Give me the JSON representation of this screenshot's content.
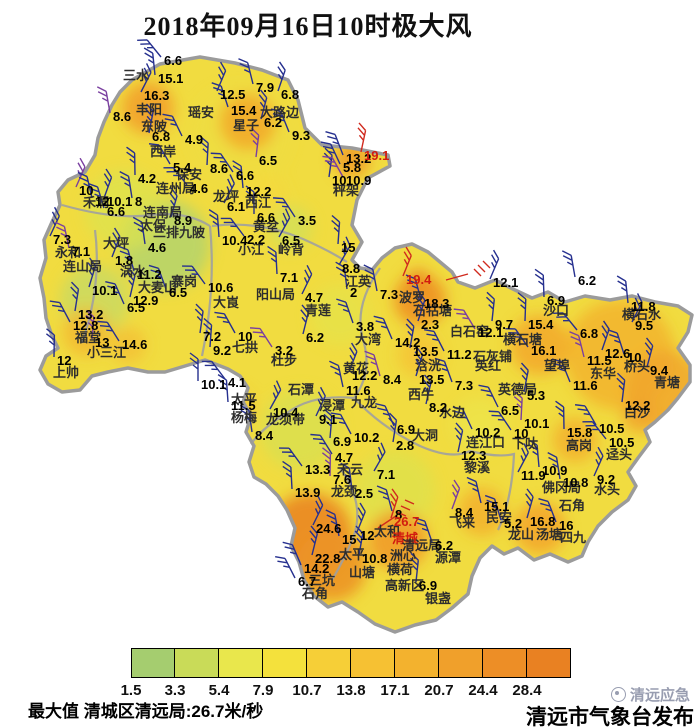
{
  "title": "2018年09月16日10时极大风",
  "legend": {
    "ticks": [
      "1.5",
      "3.3",
      "5.4",
      "7.9",
      "10.7",
      "13.8",
      "17.1",
      "20.7",
      "24.4",
      "28.4"
    ],
    "colors": [
      "#a5cd6f",
      "#c9db58",
      "#e9e74c",
      "#f4e13c",
      "#f6cf37",
      "#f6c133",
      "#f3b22e",
      "#f0a02b",
      "#ed8e26",
      "#e98122"
    ]
  },
  "footer": {
    "max_value_text": "最大值 清城区清远局:26.7米/秒",
    "issuer": "清远市气象台发布",
    "watermark": "清远应急"
  },
  "map": {
    "stations": [
      [
        "三水",
        125,
        76,
        "n"
      ],
      [
        "丰阳",
        138,
        110,
        "n"
      ],
      [
        "东陂",
        143,
        127,
        "n"
      ],
      [
        "瑶安",
        190,
        113,
        "n"
      ],
      [
        "大路边",
        262,
        113,
        "n"
      ],
      [
        "星子",
        235,
        126,
        "n"
      ],
      [
        "西岸",
        152,
        152,
        "n"
      ],
      [
        "保安",
        178,
        175,
        "n"
      ],
      [
        "连州局",
        158,
        189,
        "n"
      ],
      [
        "龙坪",
        215,
        197,
        "n"
      ],
      [
        "西江",
        247,
        203,
        "n"
      ],
      [
        "禾洞",
        85,
        203,
        "n"
      ],
      [
        "连南局",
        145,
        213,
        "n"
      ],
      [
        "太保",
        142,
        226,
        "n"
      ],
      [
        "三排九陂",
        155,
        233,
        "n"
      ],
      [
        "大坪",
        105,
        244,
        "n"
      ],
      [
        "永和",
        57,
        253,
        "n"
      ],
      [
        "黄坌",
        255,
        227,
        "n"
      ],
      [
        "小江",
        240,
        250,
        "n"
      ],
      [
        "岭背",
        280,
        250,
        "n"
      ],
      [
        "秤架",
        335,
        191,
        "n"
      ],
      [
        "连山局",
        65,
        267,
        "n"
      ],
      [
        "涡水",
        122,
        272,
        "n"
      ],
      [
        "大麦山",
        140,
        288,
        "n"
      ],
      [
        "寨岗",
        173,
        282,
        "n"
      ],
      [
        "阳山局",
        258,
        295,
        "n"
      ],
      [
        "大崀",
        215,
        303,
        "n"
      ],
      [
        "福堂",
        77,
        338,
        "n"
      ],
      [
        "小三江",
        89,
        353,
        "n"
      ],
      [
        "上帅",
        55,
        373,
        "n"
      ],
      [
        "七拱",
        234,
        348,
        "n"
      ],
      [
        "杜步",
        273,
        361,
        "n"
      ],
      [
        "太平",
        233,
        400,
        "n"
      ],
      [
        "杨梅",
        233,
        418,
        "n"
      ],
      [
        "龙须带",
        268,
        420,
        "n"
      ],
      [
        "江英",
        347,
        282,
        "n"
      ],
      [
        "青莲",
        307,
        311,
        "n"
      ],
      [
        "波罗",
        401,
        298,
        "n"
      ],
      [
        "石牯塘",
        415,
        311,
        "n"
      ],
      [
        "大湾",
        357,
        340,
        "n"
      ],
      [
        "石潭",
        290,
        390,
        "n"
      ],
      [
        "浸潭",
        321,
        406,
        "n"
      ],
      [
        "九龙",
        353,
        403,
        "n"
      ],
      [
        "黄花",
        345,
        369,
        "n"
      ],
      [
        "浛洸",
        417,
        366,
        "n"
      ],
      [
        "西牛",
        410,
        395,
        "n"
      ],
      [
        "水边",
        441,
        413,
        "n"
      ],
      [
        "大洞",
        414,
        436,
        "n"
      ],
      [
        "英红",
        477,
        366,
        "n"
      ],
      [
        "英德局",
        500,
        390,
        "n"
      ],
      [
        "石灰铺",
        475,
        357,
        "n"
      ],
      [
        "白石窑",
        452,
        332,
        "n"
      ],
      [
        "横石塘",
        505,
        340,
        "n"
      ],
      [
        "望埠",
        546,
        366,
        "n"
      ],
      [
        "沙口",
        545,
        311,
        "n"
      ],
      [
        "横石水",
        624,
        315,
        "n"
      ],
      [
        "东华",
        592,
        374,
        "n"
      ],
      [
        "桥头",
        626,
        367,
        "n"
      ],
      [
        "青塘",
        656,
        383,
        "n"
      ],
      [
        "白沙",
        626,
        413,
        "n"
      ],
      [
        "连江口",
        468,
        443,
        "n"
      ],
      [
        "黎溪",
        466,
        468,
        "n"
      ],
      [
        "下呔",
        514,
        444,
        "n"
      ],
      [
        "高岗",
        568,
        446,
        "n"
      ],
      [
        "迳头",
        608,
        455,
        "n"
      ],
      [
        "佛冈局",
        544,
        488,
        "n"
      ],
      [
        "水头",
        596,
        490,
        "n"
      ],
      [
        "石角",
        561,
        506,
        "n"
      ],
      [
        "民安",
        488,
        518,
        "n"
      ],
      [
        "飞来",
        451,
        523,
        "n"
      ],
      [
        "龙山",
        510,
        535,
        "n"
      ],
      [
        "汤塘",
        538,
        535,
        "n"
      ],
      [
        "四九",
        562,
        538,
        "n"
      ],
      [
        "禾云",
        339,
        470,
        "n"
      ],
      [
        "龙颈",
        333,
        492,
        "n"
      ],
      [
        "三坑",
        311,
        581,
        "n"
      ],
      [
        "山塘",
        351,
        573,
        "n"
      ],
      [
        "横荷",
        389,
        570,
        "n"
      ],
      [
        "太和",
        376,
        532,
        "n"
      ],
      [
        "清城",
        394,
        539,
        "rn"
      ],
      [
        "清远局",
        404,
        546,
        "n"
      ],
      [
        "洲心",
        392,
        556,
        "n"
      ],
      [
        "太平",
        341,
        555,
        "n"
      ],
      [
        "源潭",
        437,
        558,
        "n"
      ],
      [
        "高新区",
        387,
        586,
        "n"
      ],
      [
        "银盏",
        427,
        599,
        "n"
      ],
      [
        "石角",
        304,
        594,
        "n"
      ],
      [
        "6.6",
        166,
        61,
        "v"
      ],
      [
        "15.1",
        160,
        79,
        "v"
      ],
      [
        "16.3",
        146,
        96,
        "v"
      ],
      [
        "8.6",
        115,
        117,
        "v"
      ],
      [
        "12.5",
        222,
        95,
        "v"
      ],
      [
        "7.9",
        258,
        88,
        "v"
      ],
      [
        "6.8",
        283,
        95,
        "v"
      ],
      [
        "15.4",
        233,
        111,
        "v"
      ],
      [
        "6.2",
        266,
        123,
        "v"
      ],
      [
        "9.3",
        294,
        136,
        "v"
      ],
      [
        "6.8",
        154,
        137,
        "v"
      ],
      [
        "4.9",
        187,
        140,
        "v"
      ],
      [
        "6.5",
        261,
        161,
        "v"
      ],
      [
        "5.4",
        175,
        168,
        "v"
      ],
      [
        "8.6",
        212,
        169,
        "v"
      ],
      [
        "6.6",
        238,
        176,
        "v"
      ],
      [
        "4.2",
        140,
        179,
        "v"
      ],
      [
        "4.6",
        192,
        189,
        "v"
      ],
      [
        "12.2",
        248,
        192,
        "v"
      ],
      [
        "6.1",
        229,
        207,
        "v"
      ],
      [
        "8",
        137,
        202,
        "v"
      ],
      [
        "10",
        81,
        191,
        "v"
      ],
      [
        "12",
        97,
        202,
        "v"
      ],
      [
        "10.1",
        109,
        202,
        "v"
      ],
      [
        "6.6",
        109,
        212,
        "v"
      ],
      [
        "8.9",
        176,
        221,
        "v"
      ],
      [
        "13.2",
        348,
        159,
        "v"
      ],
      [
        "19.1",
        366,
        156,
        "r"
      ],
      [
        "5.8",
        345,
        168,
        "v"
      ],
      [
        "10",
        334,
        181,
        "v"
      ],
      [
        "10.9",
        348,
        181,
        "v"
      ],
      [
        "15",
        343,
        248,
        "v"
      ],
      [
        "3.5",
        300,
        221,
        "v"
      ],
      [
        "6.6",
        259,
        218,
        "v"
      ],
      [
        "2.2",
        249,
        240,
        "v"
      ],
      [
        "10.4",
        224,
        241,
        "v"
      ],
      [
        "6.5",
        284,
        241,
        "v"
      ],
      [
        "4.6",
        150,
        248,
        "v"
      ],
      [
        "7.3",
        55,
        240,
        "v"
      ],
      [
        "7.1",
        74,
        252,
        "v"
      ],
      [
        "1.8",
        117,
        261,
        "v"
      ],
      [
        "11.2",
        139,
        275,
        "v"
      ],
      [
        "10.1",
        94,
        291,
        "v"
      ],
      [
        "6.5",
        171,
        293,
        "v"
      ],
      [
        "12.9",
        135,
        301,
        "v"
      ],
      [
        "6.5",
        129,
        308,
        "v"
      ],
      [
        "13.2",
        80,
        315,
        "v"
      ],
      [
        "12.8",
        75,
        326,
        "v"
      ],
      [
        "13",
        97,
        343,
        "v"
      ],
      [
        "14.6",
        124,
        345,
        "v"
      ],
      [
        "12",
        59,
        361,
        "v"
      ],
      [
        "10.6",
        210,
        288,
        "v"
      ],
      [
        "7.1",
        282,
        278,
        "v"
      ],
      [
        "8.8",
        344,
        269,
        "v"
      ],
      [
        "2",
        352,
        293,
        "v"
      ],
      [
        "4.7",
        307,
        298,
        "v"
      ],
      [
        "7.3",
        382,
        295,
        "v"
      ],
      [
        "19.4",
        408,
        280,
        "r"
      ],
      [
        "18.3",
        426,
        304,
        "v"
      ],
      [
        "2.3",
        423,
        325,
        "v"
      ],
      [
        "3.8",
        358,
        327,
        "v"
      ],
      [
        "6.2",
        308,
        338,
        "v"
      ],
      [
        "14.2",
        397,
        343,
        "v"
      ],
      [
        "13.5",
        415,
        352,
        "v"
      ],
      [
        "11.2",
        449,
        355,
        "v"
      ],
      [
        "9.7",
        497,
        325,
        "v"
      ],
      [
        "12.1",
        480,
        333,
        "v"
      ],
      [
        "15.4",
        530,
        325,
        "v"
      ],
      [
        "16.1",
        533,
        351,
        "v"
      ],
      [
        "6.9",
        549,
        301,
        "v"
      ],
      [
        "6.8",
        582,
        334,
        "v"
      ],
      [
        "11.8",
        633,
        307,
        "v"
      ],
      [
        "9.5",
        637,
        326,
        "v"
      ],
      [
        "6.2",
        580,
        281,
        "v"
      ],
      [
        "12.1",
        495,
        283,
        "v"
      ],
      [
        "11.5",
        589,
        361,
        "v"
      ],
      [
        "12.6",
        607,
        354,
        "v"
      ],
      [
        "10",
        629,
        358,
        "v"
      ],
      [
        "9.4",
        652,
        371,
        "v"
      ],
      [
        "11.6",
        575,
        386,
        "v"
      ],
      [
        "5.3",
        529,
        396,
        "v"
      ],
      [
        "6.5",
        503,
        411,
        "v"
      ],
      [
        "12.2",
        627,
        406,
        "v"
      ],
      [
        "10.5",
        601,
        429,
        "v"
      ],
      [
        "10.1",
        526,
        424,
        "v"
      ],
      [
        "10",
        516,
        434,
        "v"
      ],
      [
        "15.8",
        569,
        433,
        "v"
      ],
      [
        "10.5",
        611,
        443,
        "v"
      ],
      [
        "10.9",
        544,
        471,
        "v"
      ],
      [
        "11.9",
        523,
        476,
        "v"
      ],
      [
        "10.8",
        565,
        483,
        "v"
      ],
      [
        "9.2",
        599,
        480,
        "v"
      ],
      [
        "15.1",
        486,
        507,
        "v"
      ],
      [
        "8.4",
        457,
        513,
        "v"
      ],
      [
        "5.2",
        506,
        524,
        "v"
      ],
      [
        "16.8",
        532,
        522,
        "v"
      ],
      [
        "16",
        561,
        526,
        "v"
      ],
      [
        "12.3",
        463,
        456,
        "v"
      ],
      [
        "10.2",
        477,
        433,
        "v"
      ],
      [
        "7.2",
        205,
        337,
        "v"
      ],
      [
        "10",
        240,
        337,
        "v"
      ],
      [
        "9.2",
        215,
        351,
        "v"
      ],
      [
        "3.2",
        277,
        351,
        "v"
      ],
      [
        "10.1",
        203,
        385,
        "v"
      ],
      [
        "4.1",
        230,
        383,
        "v"
      ],
      [
        "11.5",
        233,
        406,
        "v"
      ],
      [
        "10.4",
        275,
        413,
        "v"
      ],
      [
        "8.4",
        257,
        436,
        "v"
      ],
      [
        "9.1",
        321,
        420,
        "v"
      ],
      [
        "11.6",
        348,
        391,
        "v"
      ],
      [
        "12.2",
        354,
        376,
        "v"
      ],
      [
        "8.4",
        385,
        380,
        "v"
      ],
      [
        "13.5",
        421,
        380,
        "v"
      ],
      [
        "7.3",
        457,
        386,
        "v"
      ],
      [
        "8.2",
        431,
        408,
        "v"
      ],
      [
        "6.9",
        399,
        430,
        "v"
      ],
      [
        "2.8",
        398,
        446,
        "v"
      ],
      [
        "10.2",
        356,
        438,
        "v"
      ],
      [
        "6.9",
        335,
        442,
        "v"
      ],
      [
        "4.7",
        337,
        458,
        "v"
      ],
      [
        "7.6",
        335,
        480,
        "v"
      ],
      [
        "13.3",
        307,
        470,
        "v"
      ],
      [
        "13.9",
        297,
        493,
        "v"
      ],
      [
        "7.1",
        379,
        475,
        "v"
      ],
      [
        "2.5",
        357,
        494,
        "v"
      ],
      [
        "24.6",
        318,
        529,
        "v"
      ],
      [
        "15",
        344,
        540,
        "v"
      ],
      [
        "12",
        362,
        536,
        "v"
      ],
      [
        "8",
        397,
        515,
        "v"
      ],
      [
        "26.7",
        396,
        522,
        "r"
      ],
      [
        "6.2",
        437,
        546,
        "v"
      ],
      [
        "22.8",
        317,
        559,
        "v"
      ],
      [
        "14.2",
        306,
        569,
        "v"
      ],
      [
        "10.8",
        364,
        559,
        "v"
      ],
      [
        "6.7",
        300,
        582,
        "v"
      ],
      [
        "6.9",
        421,
        586,
        "v"
      ]
    ]
  }
}
